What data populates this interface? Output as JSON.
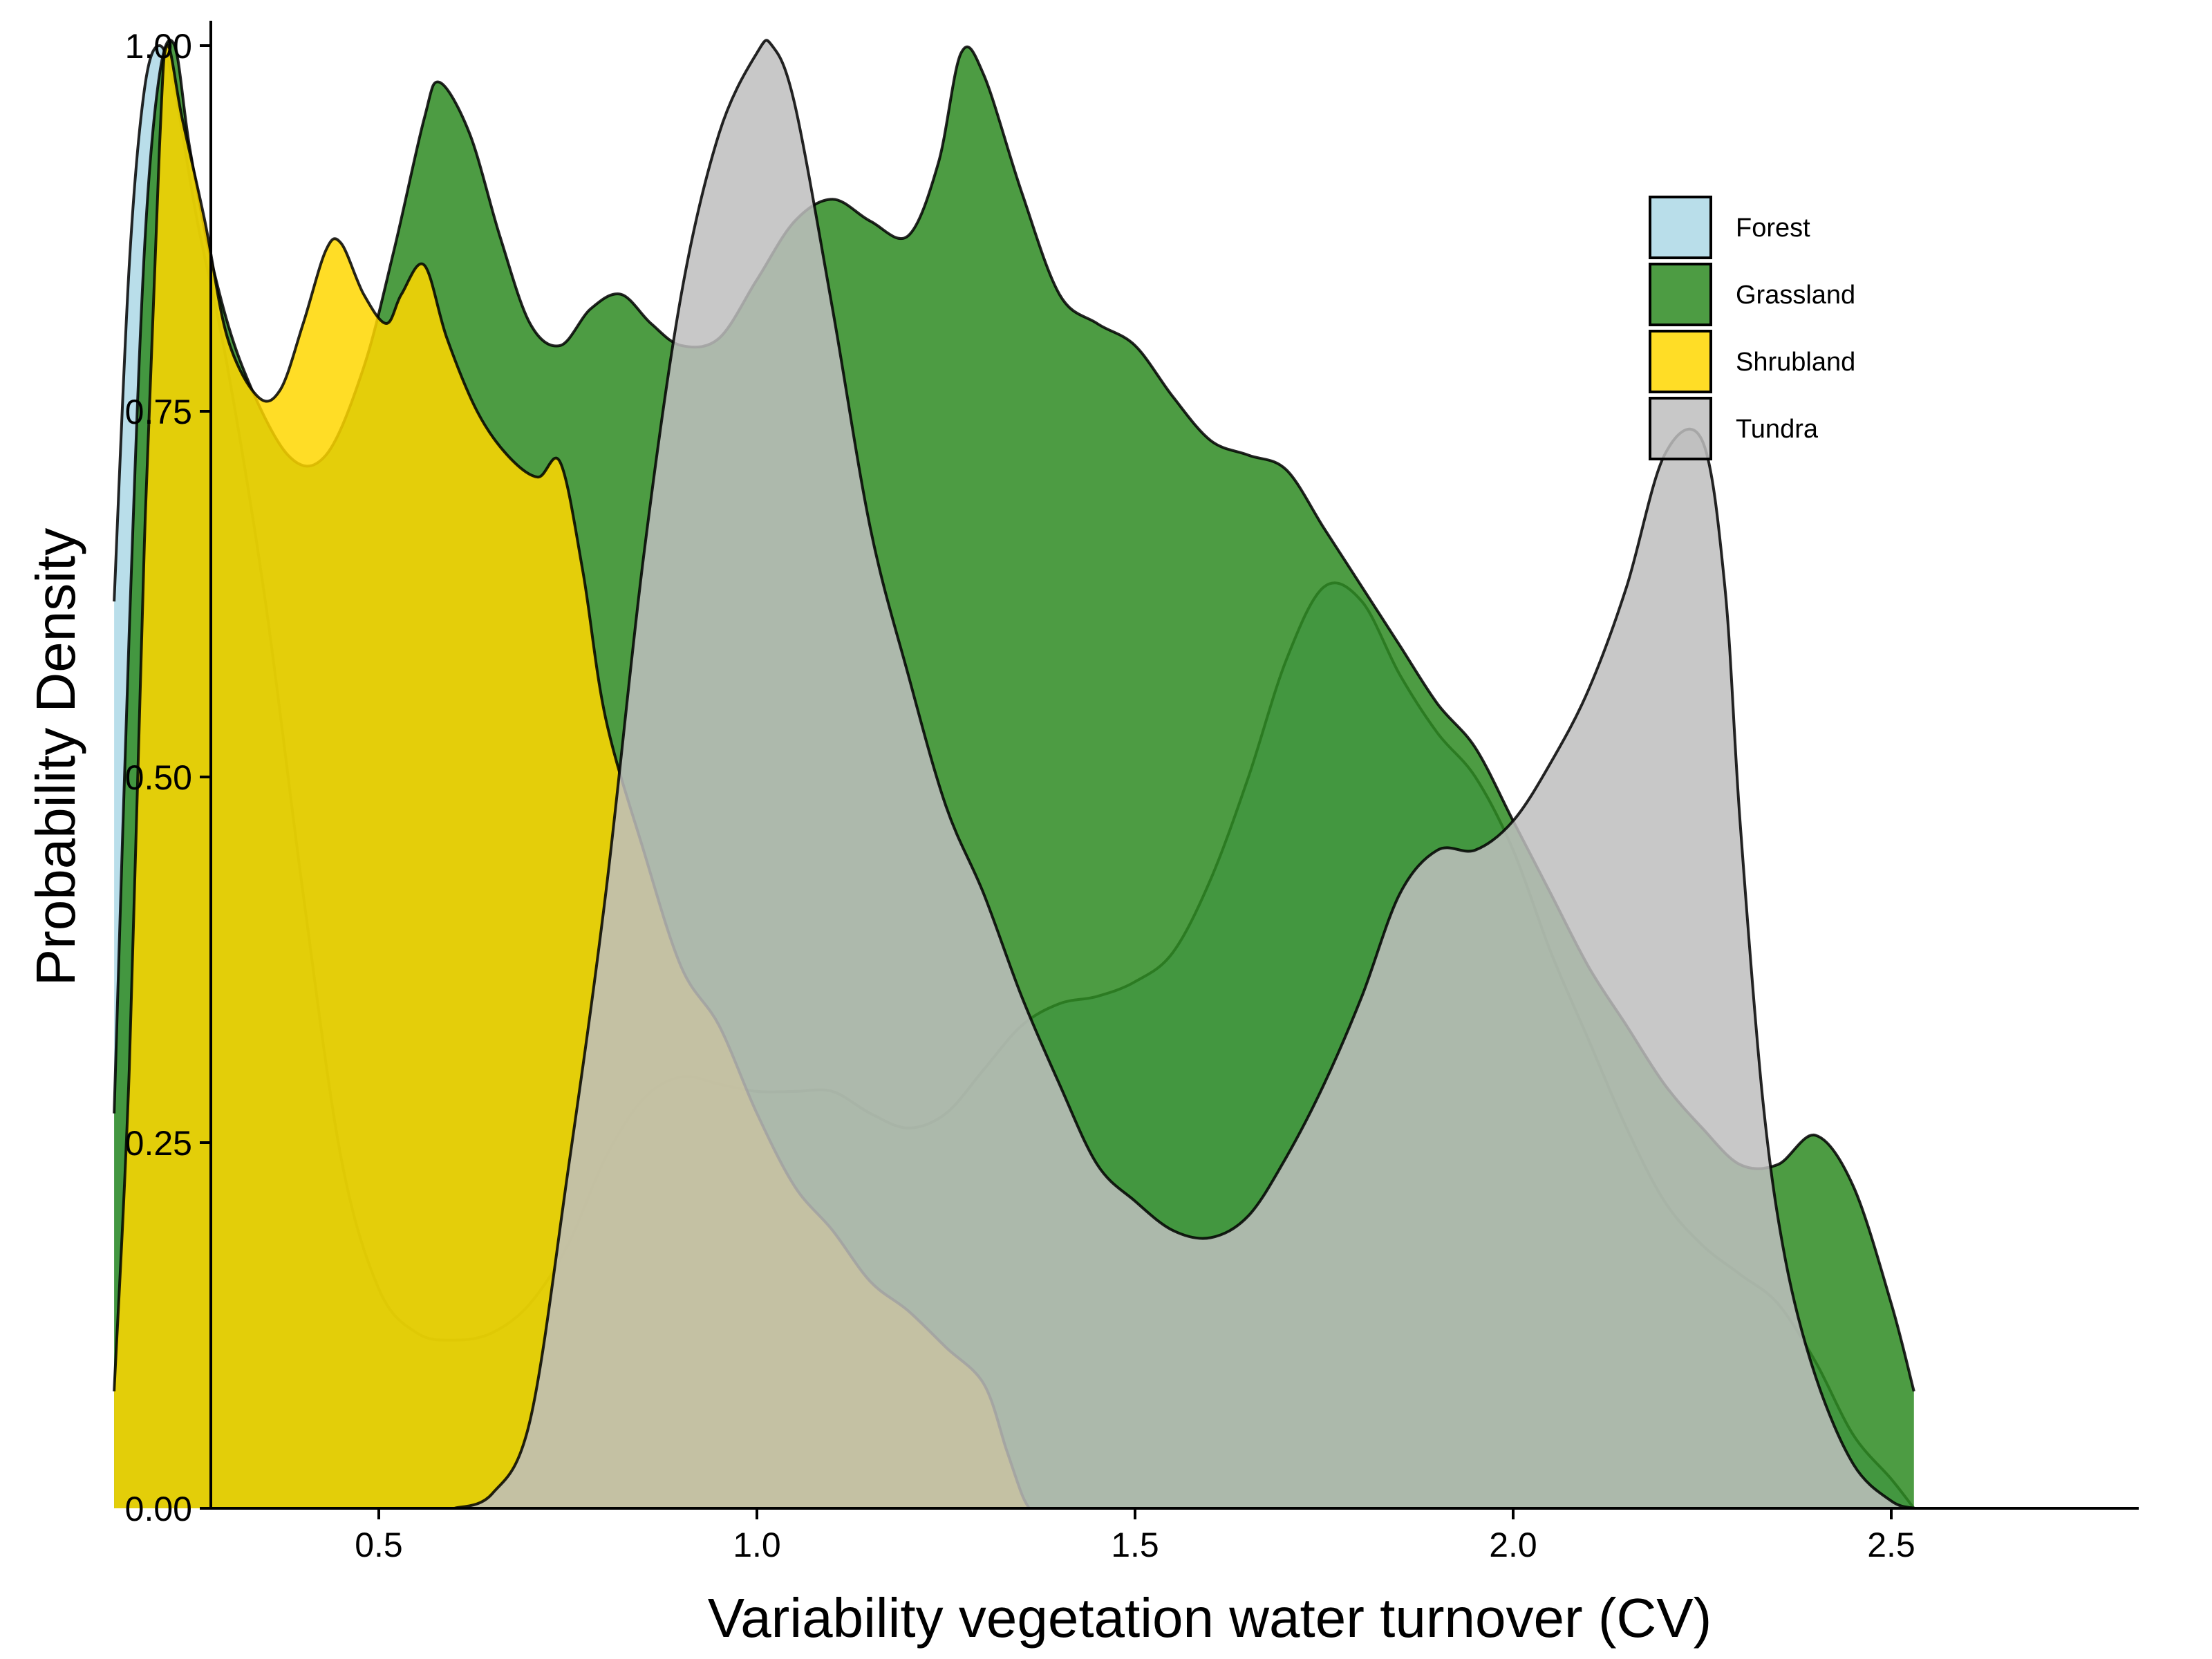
{
  "chart_data": {
    "type": "area",
    "title": "",
    "xlabel": "Variability vegetation water turnover (CV)",
    "ylabel": "Probability Density",
    "xlim": [
      0.0,
      2.65
    ],
    "ylim": [
      0.0,
      1.03
    ],
    "x_ticks": [
      "0.5",
      "1.0",
      "1.5",
      "2.0",
      "2.5"
    ],
    "x_tick_values": [
      0.5,
      1.0,
      1.5,
      2.0,
      2.5
    ],
    "y_ticks": [
      "0.00",
      "0.25",
      "0.50",
      "0.75",
      "1.00"
    ],
    "y_tick_values": [
      0.0,
      0.25,
      0.5,
      0.75,
      1.0
    ],
    "grid": false,
    "legend_position": "top-right",
    "series": [
      {
        "name": "Forest",
        "color": "#ADD8E6",
        "points": [
          [
            0.15,
            0.62
          ],
          [
            0.17,
            0.85
          ],
          [
            0.19,
            0.97
          ],
          [
            0.21,
            1.0
          ],
          [
            0.23,
            0.97
          ],
          [
            0.26,
            0.88
          ],
          [
            0.3,
            0.78
          ],
          [
            0.35,
            0.62
          ],
          [
            0.4,
            0.42
          ],
          [
            0.45,
            0.24
          ],
          [
            0.5,
            0.15
          ],
          [
            0.55,
            0.12
          ],
          [
            0.6,
            0.115
          ],
          [
            0.65,
            0.12
          ],
          [
            0.7,
            0.14
          ],
          [
            0.75,
            0.18
          ],
          [
            0.8,
            0.24
          ],
          [
            0.85,
            0.28
          ],
          [
            0.9,
            0.295
          ],
          [
            0.95,
            0.29
          ],
          [
            1.0,
            0.285
          ],
          [
            1.05,
            0.285
          ],
          [
            1.1,
            0.285
          ],
          [
            1.15,
            0.27
          ],
          [
            1.2,
            0.26
          ],
          [
            1.25,
            0.27
          ],
          [
            1.3,
            0.3
          ],
          [
            1.35,
            0.33
          ],
          [
            1.4,
            0.345
          ],
          [
            1.45,
            0.35
          ],
          [
            1.5,
            0.36
          ],
          [
            1.55,
            0.38
          ],
          [
            1.6,
            0.43
          ],
          [
            1.65,
            0.5
          ],
          [
            1.7,
            0.58
          ],
          [
            1.75,
            0.63
          ],
          [
            1.8,
            0.62
          ],
          [
            1.85,
            0.57
          ],
          [
            1.9,
            0.53
          ],
          [
            1.95,
            0.5
          ],
          [
            2.0,
            0.45
          ],
          [
            2.05,
            0.38
          ],
          [
            2.1,
            0.32
          ],
          [
            2.15,
            0.26
          ],
          [
            2.2,
            0.21
          ],
          [
            2.25,
            0.18
          ],
          [
            2.3,
            0.16
          ],
          [
            2.35,
            0.14
          ],
          [
            2.4,
            0.1
          ],
          [
            2.45,
            0.05
          ],
          [
            2.5,
            0.02
          ],
          [
            2.53,
            0.0
          ]
        ]
      },
      {
        "name": "Grassland",
        "color": "#2E8B22",
        "points": [
          [
            0.15,
            0.27
          ],
          [
            0.17,
            0.6
          ],
          [
            0.19,
            0.86
          ],
          [
            0.21,
            0.98
          ],
          [
            0.23,
            1.0
          ],
          [
            0.25,
            0.93
          ],
          [
            0.28,
            0.85
          ],
          [
            0.32,
            0.78
          ],
          [
            0.38,
            0.72
          ],
          [
            0.43,
            0.72
          ],
          [
            0.48,
            0.78
          ],
          [
            0.52,
            0.86
          ],
          [
            0.56,
            0.95
          ],
          [
            0.58,
            0.975
          ],
          [
            0.62,
            0.94
          ],
          [
            0.66,
            0.87
          ],
          [
            0.7,
            0.81
          ],
          [
            0.74,
            0.795
          ],
          [
            0.78,
            0.82
          ],
          [
            0.82,
            0.83
          ],
          [
            0.86,
            0.81
          ],
          [
            0.9,
            0.795
          ],
          [
            0.95,
            0.8
          ],
          [
            1.0,
            0.84
          ],
          [
            1.05,
            0.88
          ],
          [
            1.1,
            0.895
          ],
          [
            1.15,
            0.88
          ],
          [
            1.2,
            0.87
          ],
          [
            1.24,
            0.92
          ],
          [
            1.27,
            0.995
          ],
          [
            1.3,
            0.98
          ],
          [
            1.35,
            0.9
          ],
          [
            1.4,
            0.83
          ],
          [
            1.45,
            0.81
          ],
          [
            1.5,
            0.795
          ],
          [
            1.55,
            0.76
          ],
          [
            1.6,
            0.73
          ],
          [
            1.65,
            0.72
          ],
          [
            1.7,
            0.71
          ],
          [
            1.75,
            0.67
          ],
          [
            1.8,
            0.63
          ],
          [
            1.85,
            0.59
          ],
          [
            1.9,
            0.55
          ],
          [
            1.95,
            0.52
          ],
          [
            2.0,
            0.47
          ],
          [
            2.05,
            0.42
          ],
          [
            2.1,
            0.37
          ],
          [
            2.15,
            0.33
          ],
          [
            2.2,
            0.29
          ],
          [
            2.25,
            0.26
          ],
          [
            2.3,
            0.235
          ],
          [
            2.35,
            0.235
          ],
          [
            2.4,
            0.255
          ],
          [
            2.45,
            0.22
          ],
          [
            2.5,
            0.14
          ],
          [
            2.53,
            0.08
          ]
        ]
      },
      {
        "name": "Shrubland",
        "color": "#FFD700",
        "points": [
          [
            0.15,
            0.08
          ],
          [
            0.17,
            0.3
          ],
          [
            0.19,
            0.66
          ],
          [
            0.21,
            0.93
          ],
          [
            0.22,
            1.0
          ],
          [
            0.24,
            0.95
          ],
          [
            0.27,
            0.88
          ],
          [
            0.3,
            0.8
          ],
          [
            0.34,
            0.76
          ],
          [
            0.37,
            0.765
          ],
          [
            0.4,
            0.81
          ],
          [
            0.43,
            0.86
          ],
          [
            0.45,
            0.865
          ],
          [
            0.48,
            0.83
          ],
          [
            0.51,
            0.81
          ],
          [
            0.53,
            0.83
          ],
          [
            0.56,
            0.85
          ],
          [
            0.59,
            0.8
          ],
          [
            0.63,
            0.75
          ],
          [
            0.67,
            0.72
          ],
          [
            0.71,
            0.705
          ],
          [
            0.74,
            0.715
          ],
          [
            0.77,
            0.64
          ],
          [
            0.8,
            0.54
          ],
          [
            0.85,
            0.45
          ],
          [
            0.9,
            0.37
          ],
          [
            0.95,
            0.33
          ],
          [
            1.0,
            0.27
          ],
          [
            1.05,
            0.22
          ],
          [
            1.1,
            0.19
          ],
          [
            1.15,
            0.155
          ],
          [
            1.2,
            0.135
          ],
          [
            1.25,
            0.11
          ],
          [
            1.3,
            0.085
          ],
          [
            1.33,
            0.04
          ],
          [
            1.35,
            0.01
          ],
          [
            1.36,
            0.0
          ]
        ]
      },
      {
        "name": "Tundra",
        "color": "#BEBEBE",
        "points": [
          [
            0.6,
            0.0
          ],
          [
            0.65,
            0.01
          ],
          [
            0.7,
            0.06
          ],
          [
            0.75,
            0.23
          ],
          [
            0.8,
            0.42
          ],
          [
            0.85,
            0.65
          ],
          [
            0.9,
            0.83
          ],
          [
            0.95,
            0.94
          ],
          [
            1.0,
            0.995
          ],
          [
            1.02,
            1.0
          ],
          [
            1.05,
            0.96
          ],
          [
            1.1,
            0.82
          ],
          [
            1.15,
            0.67
          ],
          [
            1.2,
            0.57
          ],
          [
            1.25,
            0.48
          ],
          [
            1.3,
            0.42
          ],
          [
            1.35,
            0.35
          ],
          [
            1.4,
            0.29
          ],
          [
            1.45,
            0.235
          ],
          [
            1.5,
            0.21
          ],
          [
            1.55,
            0.19
          ],
          [
            1.6,
            0.185
          ],
          [
            1.65,
            0.2
          ],
          [
            1.7,
            0.24
          ],
          [
            1.75,
            0.29
          ],
          [
            1.8,
            0.35
          ],
          [
            1.85,
            0.42
          ],
          [
            1.9,
            0.45
          ],
          [
            1.95,
            0.45
          ],
          [
            2.0,
            0.47
          ],
          [
            2.05,
            0.51
          ],
          [
            2.1,
            0.56
          ],
          [
            2.15,
            0.63
          ],
          [
            2.2,
            0.72
          ],
          [
            2.25,
            0.73
          ],
          [
            2.28,
            0.63
          ],
          [
            2.3,
            0.47
          ],
          [
            2.33,
            0.28
          ],
          [
            2.36,
            0.17
          ],
          [
            2.4,
            0.09
          ],
          [
            2.45,
            0.03
          ],
          [
            2.5,
            0.005
          ],
          [
            2.53,
            0.0
          ]
        ]
      }
    ]
  }
}
